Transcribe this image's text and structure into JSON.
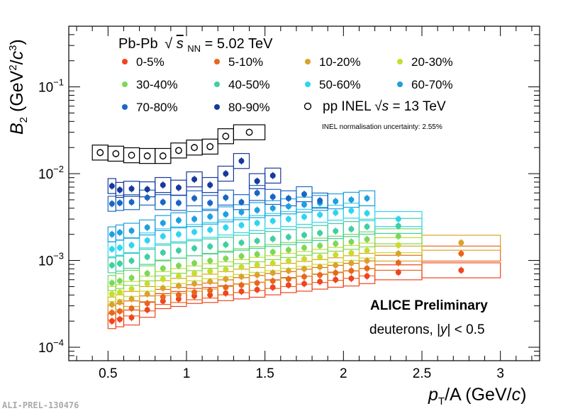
{
  "chart_data": {
    "type": "scatter",
    "title": "Pb-Pb √sNN = 5.02 TeV",
    "title_parts": {
      "system": "Pb-Pb",
      "sqrt": "√",
      "s": "s",
      "sub": "NN",
      "energy": " = 5.02 TeV"
    },
    "xlabel": "p_T/A (GeV/c)",
    "xlabel_parts": {
      "p": "p",
      "sub": "T",
      "rest": "/A (GeV/",
      "c": "c",
      "close": ")"
    },
    "ylabel": "B_2 (GeV^2/c^3)",
    "ylabel_parts": {
      "B": "B",
      "sub": "2",
      "open": " (GeV",
      "sup2": "2",
      "slash": "/",
      "c": "c",
      "sup3": "3",
      "close": ")"
    },
    "xlim": [
      0.25,
      3.25
    ],
    "ylim": [
      7e-05,
      0.5
    ],
    "yscale": "log",
    "x_ticks": [
      "0.5",
      "1",
      "1.5",
      "2",
      "2.5",
      "3"
    ],
    "x_tick_values": [
      0.5,
      1,
      1.5,
      2,
      2.5,
      3
    ],
    "y_ticks": [
      {
        "value": 0.0001,
        "mantissa": "10",
        "exp": "−4"
      },
      {
        "value": 0.001,
        "mantissa": "10",
        "exp": "−3"
      },
      {
        "value": 0.01,
        "mantissa": "10",
        "exp": "−2"
      },
      {
        "value": 0.1,
        "mantissa": "10",
        "exp": "−1"
      }
    ],
    "x_points": [
      0.525,
      0.575,
      0.65,
      0.75,
      0.85,
      0.95,
      1.05,
      1.15,
      1.25,
      1.35,
      1.45,
      1.55,
      1.65,
      1.75,
      1.85,
      1.95,
      2.05,
      2.15,
      2.35,
      2.75
    ],
    "box_half_widths": [
      0.025,
      0.025,
      0.05,
      0.05,
      0.05,
      0.05,
      0.05,
      0.05,
      0.05,
      0.05,
      0.05,
      0.05,
      0.05,
      0.05,
      0.05,
      0.05,
      0.05,
      0.05,
      0.15,
      0.25
    ],
    "series": [
      {
        "name": "0-5%",
        "color": "#f0441f",
        "values": [
          0.0002,
          0.00021,
          0.00022,
          0.00027,
          0.00034,
          0.00036,
          0.00039,
          0.0004,
          0.00042,
          0.00044,
          0.00046,
          0.00049,
          0.00052,
          0.00054,
          0.00057,
          0.0006,
          0.00062,
          0.00066,
          0.00073,
          0.00077
        ]
      },
      {
        "name": "5-10%",
        "color": "#e8661e",
        "values": [
          0.00025,
          0.00026,
          0.00028,
          0.00032,
          0.00038,
          0.0004,
          0.00043,
          0.00045,
          0.00049,
          0.00052,
          0.00055,
          0.00058,
          0.00061,
          0.00065,
          0.00068,
          0.00072,
          0.00076,
          0.00081,
          0.00094,
          0.0012
        ]
      },
      {
        "name": "10-20%",
        "color": "#d9a32a",
        "values": [
          0.00031,
          0.00033,
          0.00036,
          0.00041,
          0.00048,
          0.00051,
          0.00054,
          0.00057,
          0.00061,
          0.00065,
          0.00068,
          0.00072,
          0.00076,
          0.0008,
          0.00084,
          0.00088,
          0.00093,
          0.00099,
          0.0012,
          0.0016
        ]
      },
      {
        "name": "20-30%",
        "color": "#c8dc2c",
        "values": [
          0.00041,
          0.00043,
          0.00047,
          0.00054,
          0.00061,
          0.00066,
          0.00071,
          0.00075,
          0.00079,
          0.00084,
          0.00089,
          0.00093,
          0.00099,
          0.00104,
          0.0011,
          0.00116,
          0.00122,
          0.0013,
          0.0015
        ]
      },
      {
        "name": "30-40%",
        "color": "#7dd85a",
        "values": [
          0.00055,
          0.00058,
          0.00063,
          0.00071,
          0.00081,
          0.00087,
          0.00093,
          0.00099,
          0.00105,
          0.00112,
          0.00118,
          0.00125,
          0.00132,
          0.0014,
          0.00148,
          0.00156,
          0.00164,
          0.00175,
          0.0019
        ]
      },
      {
        "name": "40-50%",
        "color": "#3fcfa2",
        "values": [
          0.00088,
          0.00092,
          0.00099,
          0.0011,
          0.00123,
          0.0013,
          0.00138,
          0.00145,
          0.00152,
          0.0016,
          0.00168,
          0.00177,
          0.00186,
          0.00196,
          0.00207,
          0.00218,
          0.0023,
          0.00245,
          0.0025
        ]
      },
      {
        "name": "50-60%",
        "color": "#2fd5ee",
        "values": [
          0.00135,
          0.0014,
          0.0015,
          0.0017,
          0.0019,
          0.002,
          0.00213,
          0.00225,
          0.0024,
          0.00255,
          0.0027,
          0.00285,
          0.003,
          0.00318,
          0.00336,
          0.00355,
          0.00375,
          0.0035,
          0.003
        ]
      },
      {
        "name": "60-70%",
        "color": "#1e9fe0",
        "values": [
          0.002,
          0.0021,
          0.0022,
          0.0024,
          0.0027,
          0.0029,
          0.003,
          0.0032,
          0.0034,
          0.0036,
          0.0038,
          0.004,
          0.0042,
          0.0044,
          0.0046,
          0.0048,
          0.005,
          0.0052
        ]
      },
      {
        "name": "70-80%",
        "color": "#1b66c5",
        "values": [
          0.0045,
          0.0046,
          0.0047,
          0.0053,
          0.0047,
          0.0046,
          0.0052,
          0.0046,
          0.0053,
          0.0047,
          0.006,
          0.0054,
          0.0052,
          0.0058,
          0.0049
        ]
      },
      {
        "name": "80-90%",
        "color": "#16399e",
        "values": [
          0.0072,
          0.0065,
          0.0067,
          0.0066,
          0.0074,
          0.0069,
          0.0086,
          0.0074,
          0.01,
          0.014,
          0.0082,
          0.0095
        ]
      },
      {
        "name": "pp INEL √s = 13 TeV",
        "color": "#000000",
        "open": true,
        "values": [
          0.0175,
          0.017,
          0.0163,
          0.016,
          0.016,
          0.0185,
          0.02,
          0.0205,
          0.027,
          0.03
        ],
        "x_override": [
          0.45,
          0.55,
          0.65,
          0.75,
          0.85,
          0.95,
          1.05,
          1.15,
          1.25,
          1.4
        ],
        "box_override": [
          0.05,
          0.05,
          0.05,
          0.05,
          0.05,
          0.05,
          0.05,
          0.05,
          0.05,
          0.1
        ]
      }
    ],
    "legend": {
      "header": "Pb-Pb √sNN = 5.02 TeV",
      "entries": [
        "0-5%",
        "5-10%",
        "10-20%",
        "20-30%",
        "30-40%",
        "40-50%",
        "50-60%",
        "60-70%",
        "70-80%",
        "80-90%"
      ],
      "pp_label_parts": {
        "text": "pp INEL ",
        "sqrt": "√",
        "s": "s",
        "rest": " = 13 TeV"
      },
      "placement": "top"
    },
    "annotations": {
      "normalisation": "INEL normalisation uncertainty: 2.55%",
      "preliminary": "ALICE Preliminary",
      "description_parts": {
        "text": "deuterons, |",
        "y": "y",
        "rest": "| < 0.5"
      }
    },
    "stamp": "ALI-PREL-130476"
  }
}
